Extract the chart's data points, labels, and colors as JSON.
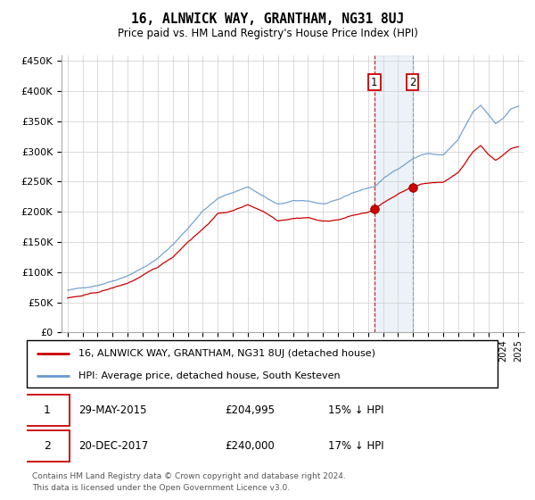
{
  "title": "16, ALNWICK WAY, GRANTHAM, NG31 8UJ",
  "subtitle": "Price paid vs. HM Land Registry's House Price Index (HPI)",
  "ylim": [
    0,
    460000
  ],
  "yticks": [
    0,
    50000,
    100000,
    150000,
    200000,
    250000,
    300000,
    350000,
    400000,
    450000
  ],
  "ytick_labels": [
    "£0",
    "£50K",
    "£100K",
    "£150K",
    "£200K",
    "£250K",
    "£300K",
    "£350K",
    "£400K",
    "£450K"
  ],
  "background_color": "#ffffff",
  "grid_color": "#cccccc",
  "hpi_color": "#6699cc",
  "price_color": "#cc0000",
  "t1_x": 2015.42,
  "t1_y": 204995,
  "t2_x": 2017.96,
  "t2_y": 240000,
  "legend_label1": "16, ALNWICK WAY, GRANTHAM, NG31 8UJ (detached house)",
  "legend_label2": "HPI: Average price, detached house, South Kesteven",
  "row1_date": "29-MAY-2015",
  "row1_price": "£204,995",
  "row1_pct": "15% ↓ HPI",
  "row2_date": "20-DEC-2017",
  "row2_price": "£240,000",
  "row2_pct": "17% ↓ HPI",
  "footer": "Contains HM Land Registry data © Crown copyright and database right 2024.\nThis data is licensed under the Open Government Licence v3.0.",
  "xlim_left": 1994.6,
  "xlim_right": 2025.4
}
